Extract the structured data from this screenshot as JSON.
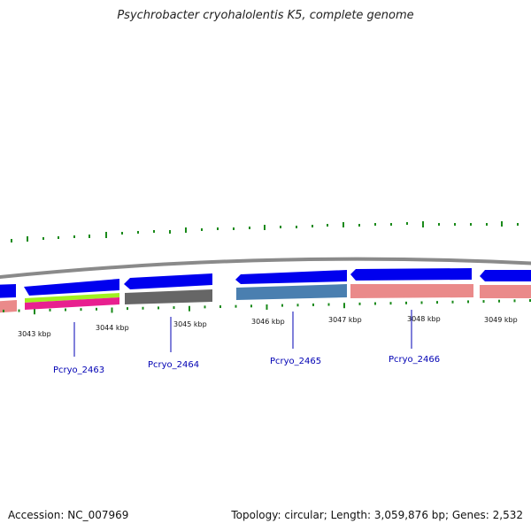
{
  "title": "Psychrobacter cryohalolentis K5, complete genome",
  "accession": "Accession: NC_007969",
  "topology": "Topology: circular; Length: 3,059,876 bp; Genes: 2,532",
  "ticks": [
    "3043 kbp",
    "3044 kbp",
    "3045 kbp",
    "3046 kbp",
    "3047 kbp",
    "3048 kbp",
    "3049 kbp"
  ],
  "genes": [
    "Pcryo_2463",
    "Pcryo_2464",
    "Pcryo_2465",
    "Pcryo_2466"
  ],
  "colors": {
    "cds_forward": "#0000ee",
    "cds_reverse_pink": "#ea8a8a",
    "steel_blue": "#4a7fb0",
    "gray_feature": "#666666",
    "magenta": "#e8208f",
    "lime": "#a0f020",
    "gc_skew": "#1a8a1a",
    "backbone": "#8a8a8a",
    "label_blue": "#0000b4"
  }
}
